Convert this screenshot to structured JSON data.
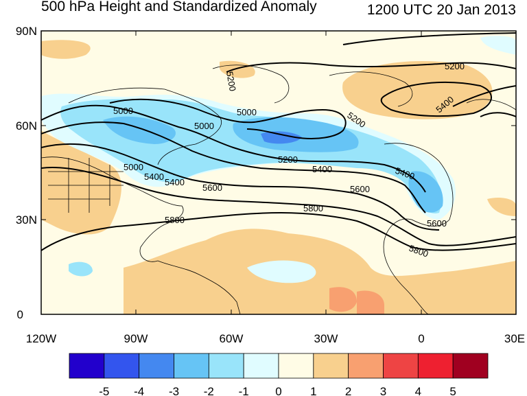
{
  "title": "500 hPa Height and Standardized Anomaly",
  "valid_time": "1200 UTC 20 Jan 2013",
  "lat_labels": [
    "90N",
    "60N",
    "30N",
    "0"
  ],
  "lon_labels": [
    "120W",
    "90W",
    "60W",
    "30W",
    "0",
    "30E"
  ],
  "colorbar": {
    "labels": [
      "-5",
      "-4",
      "-3",
      "-2",
      "-1",
      "0",
      "1",
      "2",
      "3",
      "4",
      "5"
    ],
    "colors": [
      "#2200cc",
      "#3355ee",
      "#4488f0",
      "#66c4f5",
      "#99e4fa",
      "#e0fcff",
      "#fffce6",
      "#f8d08e",
      "#f8a070",
      "#ee4444",
      "#ee2030",
      "#a00020"
    ]
  },
  "contour_labels": [
    "5200",
    "5000",
    "5000",
    "5000",
    "5200",
    "5200",
    "5400",
    "5600",
    "5400",
    "5400",
    "5600",
    "5800",
    "5800",
    "5600",
    "5800",
    "5200",
    "5400",
    "5000",
    "5400"
  ],
  "colors": {
    "negative_anomaly": "#99e4fa",
    "strong_negative": "#66c4f5",
    "positive_anomaly": "#f8d08e",
    "neutral_warm": "#fffce6",
    "neutral_cool": "#e0fcff"
  }
}
